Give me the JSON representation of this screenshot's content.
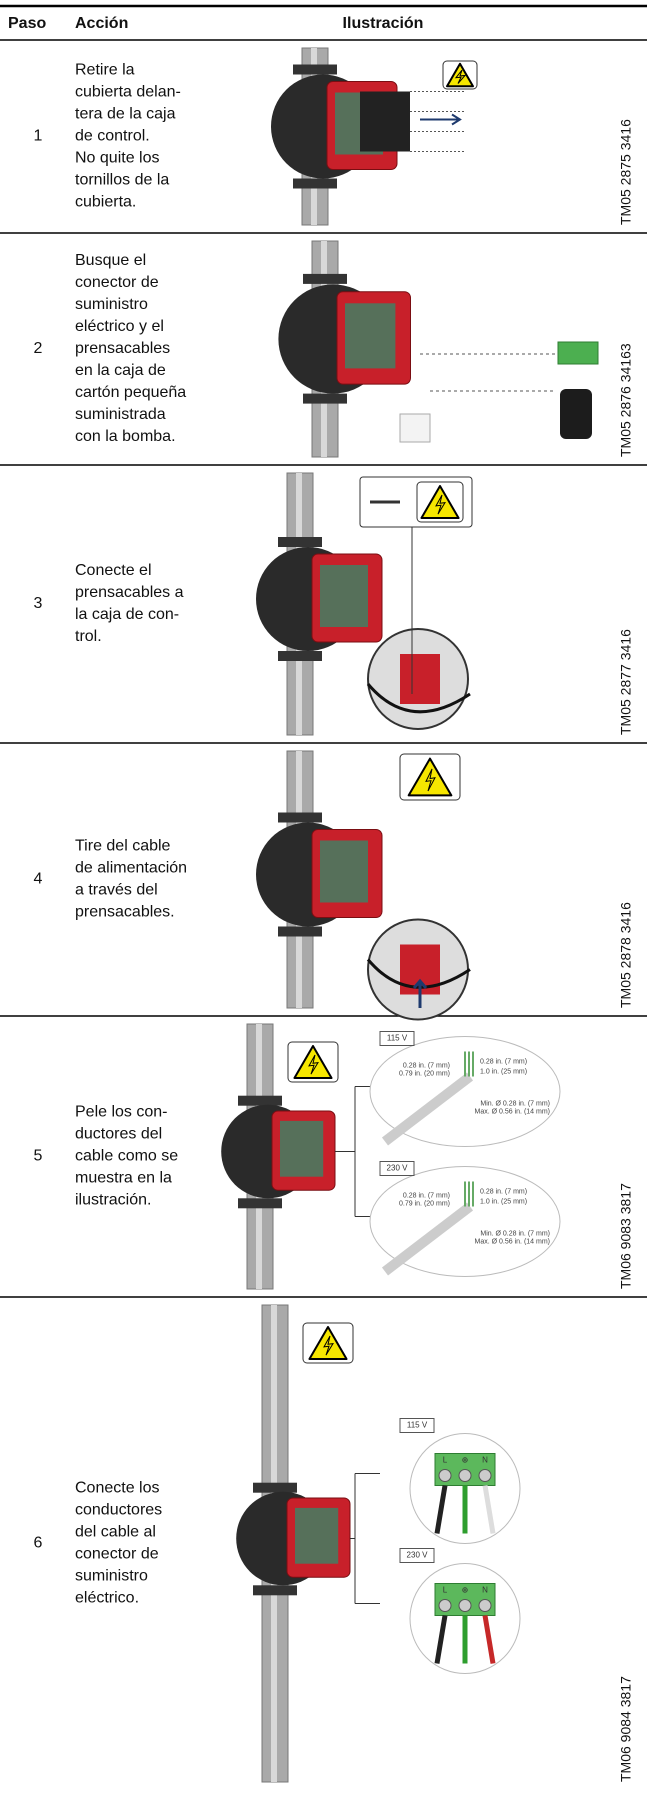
{
  "header": {
    "step": "Paso",
    "action": "Acción",
    "illustration": "Ilustración"
  },
  "rows": [
    {
      "step": "1",
      "action": [
        "Retire la",
        "cubierta delan-",
        "tera de la caja",
        "de control.",
        "No quite los",
        "tornillos de la",
        "cubierta."
      ],
      "code": "TM05 2875 3416"
    },
    {
      "step": "2",
      "action": [
        "Busque el",
        "conector de",
        "suministro",
        "eléctrico y el",
        "prensacables",
        "en la caja de",
        "cartón pequeña",
        "suministrada",
        "con la bomba."
      ],
      "code": "TM05 2876 34163"
    },
    {
      "step": "3",
      "action": [
        "Conecte el",
        "prensacables a",
        "la caja de con-",
        "trol."
      ],
      "code": "TM05 2877 3416"
    },
    {
      "step": "4",
      "action": [
        "Tire del cable",
        "de alimentación",
        "a través del",
        "prensacables."
      ],
      "code": "TM05 2878 3416"
    },
    {
      "step": "5",
      "action": [
        "Pele los con-",
        "ductores del",
        "cable como se",
        "muestra en la",
        "ilustración."
      ],
      "code": "TM06 9083 3817",
      "callouts": [
        {
          "voltage": "115 V",
          "dims": [
            "0.28 in. (7 mm)",
            "0.79 in. (20 mm)",
            "0.28 in. (7 mm)",
            "1.0 in. (25 mm)",
            "Min. Ø 0.28 in. (7 mm)",
            "Max. Ø 0.56 in. (14 mm)"
          ]
        },
        {
          "voltage": "230 V",
          "dims": [
            "0.28 in. (7 mm)",
            "0.79 in. (20 mm)",
            "0.28 in. (7 mm)",
            "1.0 in. (25 mm)",
            "Min. Ø 0.28 in. (7 mm)",
            "Max. Ø 0.56 in. (14 mm)"
          ]
        }
      ]
    },
    {
      "step": "6",
      "action": [
        "Conecte los",
        "conductores",
        "del cable al",
        "conector de",
        "suministro",
        "eléctrico."
      ],
      "code": "TM06 9084 3817",
      "callouts": [
        {
          "voltage": "115 V",
          "terminals": [
            "L",
            "⊕",
            "N"
          ]
        },
        {
          "voltage": "230 V",
          "terminals": [
            "L",
            "⊕",
            "N"
          ]
        }
      ]
    }
  ]
}
